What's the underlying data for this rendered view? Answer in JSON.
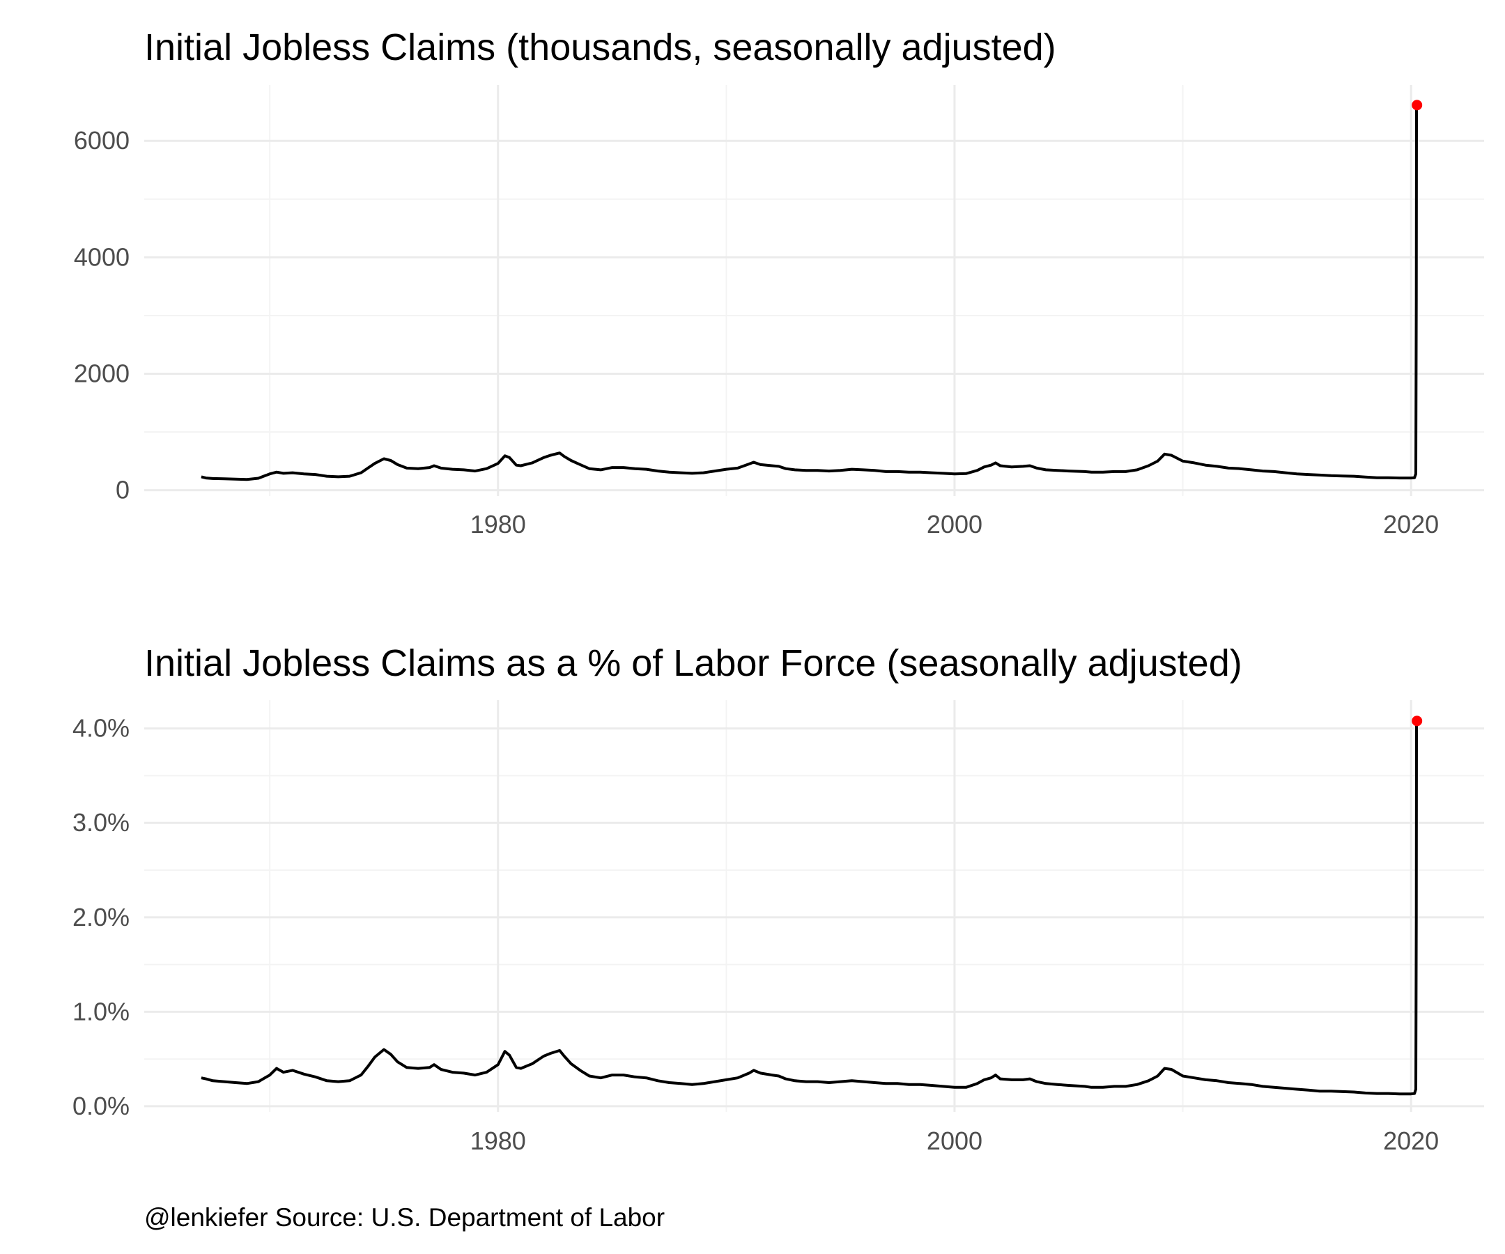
{
  "caption": "@lenkiefer Source: U.S. Department of Labor",
  "colors": {
    "line": "#000000",
    "highlight": "#ff0000",
    "grid": "#ebebeb"
  },
  "chart_data": [
    {
      "type": "line",
      "title": "Initial Jobless Claims (thousands, seasonally adjusted)",
      "xlabel": "",
      "ylabel": "",
      "xlim": [
        1964.5,
        2023.2
      ],
      "ylim": [
        -100,
        6960
      ],
      "x_ticks": [
        1980,
        2000,
        2020
      ],
      "x_tick_labels": [
        "1980",
        "2000",
        "2020"
      ],
      "y_ticks": [
        0,
        2000,
        4000,
        6000
      ],
      "y_tick_labels": [
        "0",
        "2000",
        "4000",
        "6000"
      ],
      "grid": true,
      "legend": "none",
      "series": [
        {
          "x": [
            1967.0,
            1967.2,
            1967.5,
            1968.0,
            1968.5,
            1969.0,
            1969.5,
            1970.0,
            1970.3,
            1970.6,
            1971.0,
            1971.5,
            1972.0,
            1972.5,
            1973.0,
            1973.5,
            1974.0,
            1974.3,
            1974.6,
            1975.0,
            1975.3,
            1975.6,
            1976.0,
            1976.5,
            1977.0,
            1977.2,
            1977.5,
            1978.0,
            1978.5,
            1979.0,
            1979.5,
            1980.0,
            1980.3,
            1980.5,
            1980.8,
            1981.0,
            1981.5,
            1982.0,
            1982.3,
            1982.7,
            1982.9,
            1983.2,
            1983.6,
            1984.0,
            1984.5,
            1985.0,
            1985.5,
            1986.0,
            1986.5,
            1987.0,
            1987.5,
            1988.0,
            1988.5,
            1989.0,
            1989.5,
            1990.0,
            1990.5,
            1991.0,
            1991.2,
            1991.5,
            1992.0,
            1992.3,
            1992.6,
            1993.0,
            1993.5,
            1994.0,
            1994.5,
            1995.0,
            1995.5,
            1996.0,
            1996.5,
            1997.0,
            1997.5,
            1998.0,
            1998.5,
            1999.0,
            1999.5,
            2000.0,
            2000.5,
            2001.0,
            2001.3,
            2001.6,
            2001.8,
            2002.0,
            2002.5,
            2003.0,
            2003.3,
            2003.6,
            2004.0,
            2004.5,
            2005.0,
            2005.7,
            2006.0,
            2006.5,
            2007.0,
            2007.5,
            2008.0,
            2008.5,
            2008.9,
            2009.2,
            2009.5,
            2010.0,
            2010.5,
            2011.0,
            2011.5,
            2012.0,
            2012.5,
            2013.0,
            2013.5,
            2014.0,
            2014.5,
            2015.0,
            2015.5,
            2016.0,
            2016.5,
            2017.0,
            2017.5,
            2018.0,
            2018.5,
            2019.0,
            2019.5,
            2020.0,
            2020.15,
            2020.21,
            2020.23,
            2020.24,
            2020.25,
            2020.26
          ],
          "y": [
            230,
            210,
            200,
            195,
            190,
            185,
            205,
            280,
            310,
            290,
            300,
            280,
            270,
            240,
            230,
            240,
            300,
            380,
            460,
            540,
            510,
            440,
            380,
            370,
            390,
            420,
            380,
            360,
            350,
            330,
            370,
            460,
            590,
            560,
            430,
            420,
            470,
            560,
            600,
            640,
            580,
            510,
            440,
            370,
            350,
            390,
            390,
            370,
            360,
            330,
            310,
            300,
            290,
            300,
            330,
            360,
            380,
            450,
            480,
            440,
            420,
            410,
            370,
            350,
            340,
            340,
            330,
            340,
            360,
            350,
            340,
            320,
            320,
            310,
            310,
            300,
            290,
            280,
            285,
            340,
            400,
            430,
            470,
            420,
            400,
            410,
            420,
            380,
            350,
            340,
            330,
            320,
            310,
            310,
            320,
            320,
            350,
            420,
            500,
            620,
            600,
            500,
            470,
            430,
            410,
            380,
            370,
            350,
            330,
            320,
            300,
            280,
            270,
            260,
            250,
            245,
            240,
            225,
            215,
            215,
            210,
            210,
            215,
            280,
            3300,
            6600,
            6615,
            6615
          ]
        }
      ],
      "highlight_point": {
        "x": 2020.26,
        "y": 6615
      }
    },
    {
      "type": "line",
      "title": "Initial Jobless Claims as a % of Labor Force (seasonally adjusted)",
      "xlabel": "",
      "ylabel": "",
      "xlim": [
        1964.5,
        2023.2
      ],
      "ylim": [
        -0.06,
        4.3
      ],
      "x_ticks": [
        1980,
        2000,
        2020
      ],
      "x_tick_labels": [
        "1980",
        "2000",
        "2020"
      ],
      "y_ticks": [
        0,
        1,
        2,
        3,
        4
      ],
      "y_tick_labels": [
        "0.0%",
        "1.0%",
        "2.0%",
        "3.0%",
        "4.0%"
      ],
      "grid": true,
      "legend": "none",
      "series": [
        {
          "x": [
            1967.0,
            1967.2,
            1967.5,
            1968.0,
            1968.5,
            1969.0,
            1969.5,
            1970.0,
            1970.3,
            1970.6,
            1971.0,
            1971.5,
            1972.0,
            1972.5,
            1973.0,
            1973.5,
            1974.0,
            1974.3,
            1974.6,
            1975.0,
            1975.3,
            1975.6,
            1976.0,
            1976.5,
            1977.0,
            1977.2,
            1977.5,
            1978.0,
            1978.5,
            1979.0,
            1979.5,
            1980.0,
            1980.3,
            1980.5,
            1980.8,
            1981.0,
            1981.5,
            1982.0,
            1982.3,
            1982.7,
            1982.9,
            1983.2,
            1983.6,
            1984.0,
            1984.5,
            1985.0,
            1985.5,
            1986.0,
            1986.5,
            1987.0,
            1987.5,
            1988.0,
            1988.5,
            1989.0,
            1989.5,
            1990.0,
            1990.5,
            1991.0,
            1991.2,
            1991.5,
            1992.0,
            1992.3,
            1992.6,
            1993.0,
            1993.5,
            1994.0,
            1994.5,
            1995.0,
            1995.5,
            1996.0,
            1996.5,
            1997.0,
            1997.5,
            1998.0,
            1998.5,
            1999.0,
            1999.5,
            2000.0,
            2000.5,
            2001.0,
            2001.3,
            2001.6,
            2001.8,
            2002.0,
            2002.5,
            2003.0,
            2003.3,
            2003.6,
            2004.0,
            2004.5,
            2005.0,
            2005.7,
            2006.0,
            2006.5,
            2007.0,
            2007.5,
            2008.0,
            2008.5,
            2008.9,
            2009.2,
            2009.5,
            2010.0,
            2010.5,
            2011.0,
            2011.5,
            2012.0,
            2012.5,
            2013.0,
            2013.5,
            2014.0,
            2014.5,
            2015.0,
            2015.5,
            2016.0,
            2016.5,
            2017.0,
            2017.5,
            2018.0,
            2018.5,
            2019.0,
            2019.5,
            2020.0,
            2020.15,
            2020.21,
            2020.23,
            2020.24,
            2020.25,
            2020.26
          ],
          "y": [
            0.3,
            0.29,
            0.27,
            0.26,
            0.25,
            0.24,
            0.26,
            0.33,
            0.4,
            0.36,
            0.38,
            0.34,
            0.31,
            0.27,
            0.26,
            0.27,
            0.33,
            0.42,
            0.52,
            0.6,
            0.55,
            0.47,
            0.41,
            0.4,
            0.41,
            0.44,
            0.39,
            0.36,
            0.35,
            0.33,
            0.36,
            0.44,
            0.58,
            0.54,
            0.41,
            0.4,
            0.45,
            0.53,
            0.56,
            0.59,
            0.53,
            0.45,
            0.38,
            0.32,
            0.3,
            0.33,
            0.33,
            0.31,
            0.3,
            0.27,
            0.25,
            0.24,
            0.23,
            0.24,
            0.26,
            0.28,
            0.3,
            0.35,
            0.38,
            0.35,
            0.33,
            0.32,
            0.29,
            0.27,
            0.26,
            0.26,
            0.25,
            0.26,
            0.27,
            0.26,
            0.25,
            0.24,
            0.24,
            0.23,
            0.23,
            0.22,
            0.21,
            0.2,
            0.2,
            0.24,
            0.28,
            0.3,
            0.33,
            0.29,
            0.28,
            0.28,
            0.29,
            0.26,
            0.24,
            0.23,
            0.22,
            0.21,
            0.2,
            0.2,
            0.21,
            0.21,
            0.23,
            0.27,
            0.32,
            0.4,
            0.39,
            0.32,
            0.3,
            0.28,
            0.27,
            0.25,
            0.24,
            0.23,
            0.21,
            0.2,
            0.19,
            0.18,
            0.17,
            0.16,
            0.16,
            0.155,
            0.15,
            0.14,
            0.135,
            0.135,
            0.13,
            0.13,
            0.135,
            0.18,
            2.0,
            4.05,
            4.08,
            4.08
          ]
        }
      ],
      "highlight_point": {
        "x": 2020.26,
        "y": 4.08
      }
    }
  ]
}
